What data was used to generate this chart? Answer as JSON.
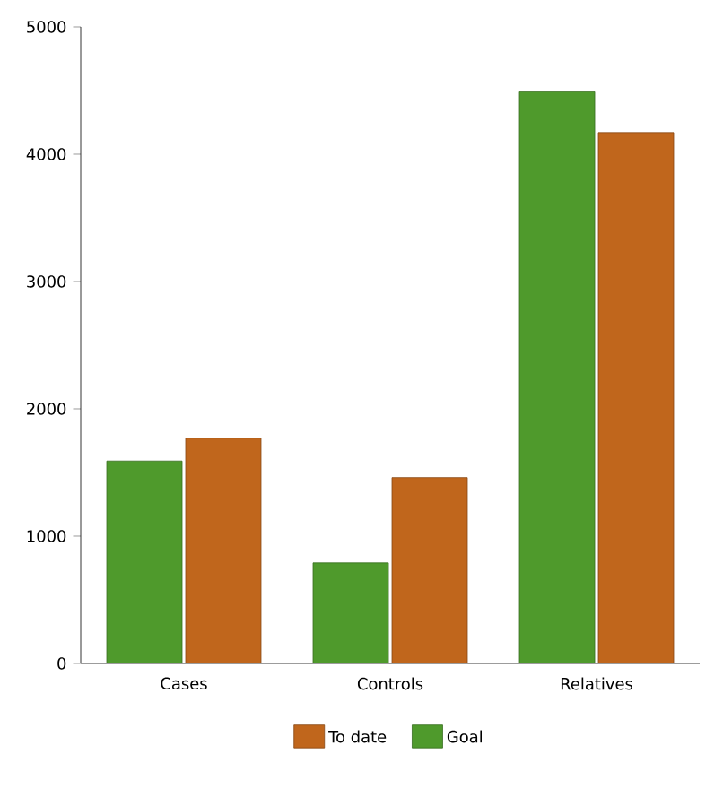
{
  "chart_data": {
    "type": "bar",
    "categories": [
      "Cases",
      "Controls",
      "Relatives"
    ],
    "series": [
      {
        "name": "Goal",
        "color": "#4f9a2c",
        "values": [
          1590,
          790,
          4490
        ]
      },
      {
        "name": "To date",
        "color": "#c0661c",
        "values": [
          1770,
          1460,
          4170
        ]
      }
    ],
    "ylim": [
      0,
      5000
    ],
    "yticks": [
      0,
      1000,
      2000,
      3000,
      4000,
      5000
    ],
    "grid": false,
    "legend": "bottom"
  }
}
